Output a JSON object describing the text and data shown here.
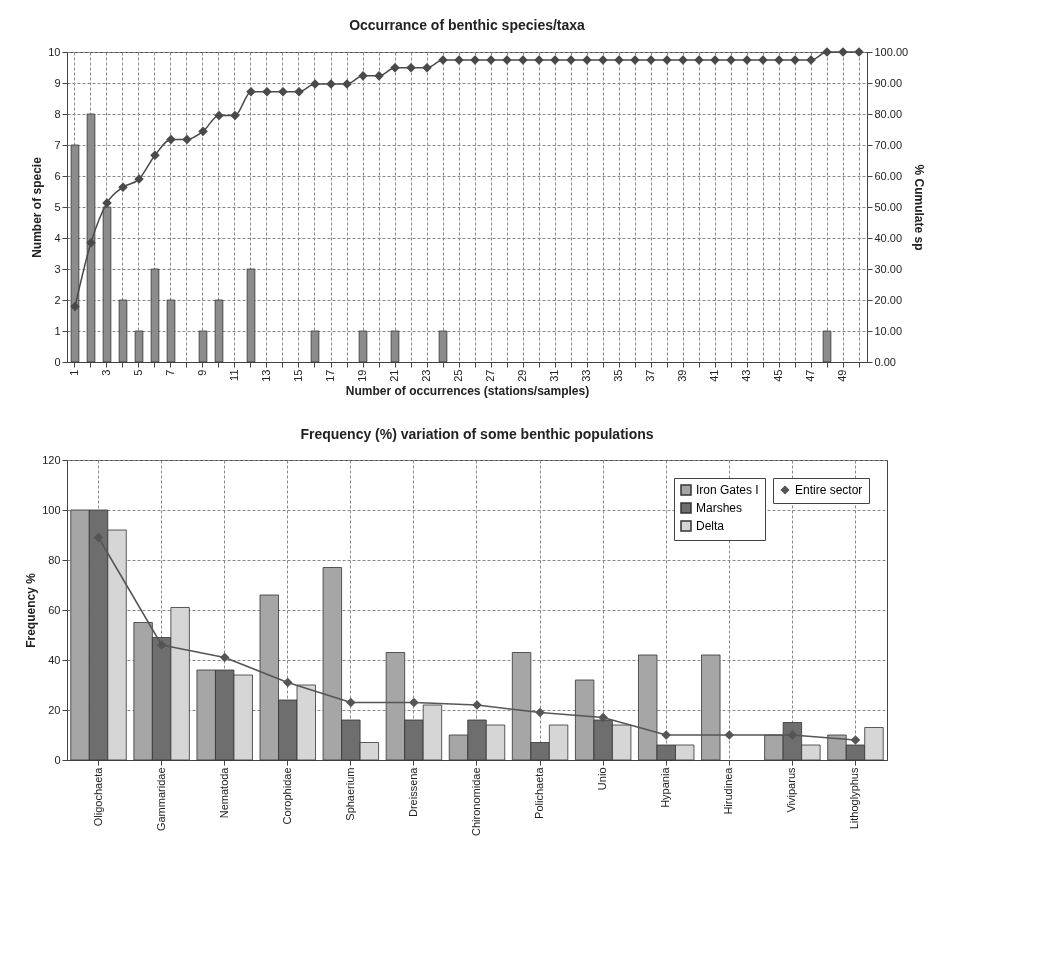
{
  "chart_data": [
    {
      "type": "bar",
      "title": "Occurrance of benthic species/taxa",
      "xlabel": "Number of occurrences (stations/samples)",
      "ylabel": "Number of specie",
      "y2label": "% Cumulate sp",
      "categories": [
        "1",
        null,
        "3",
        null,
        "5",
        null,
        "7",
        null,
        "9",
        null,
        "11",
        null,
        "13",
        null,
        "15",
        null,
        "17",
        null,
        "19",
        null,
        "21",
        null,
        "23",
        null,
        "25",
        null,
        "27",
        null,
        "29",
        null,
        "31",
        null,
        "33",
        null,
        "35",
        null,
        "37",
        null,
        "39",
        null,
        "41",
        null,
        "43",
        null,
        "45",
        null,
        "47",
        null,
        "49",
        null
      ],
      "series": [
        {
          "color": "#8c8c8c",
          "values": [
            7,
            8,
            5,
            2,
            1,
            3,
            2,
            0,
            1,
            2,
            0,
            3,
            0,
            0,
            0,
            1,
            0,
            0,
            1,
            0,
            1,
            0,
            0,
            1,
            0,
            0,
            0,
            0,
            0,
            0,
            0,
            0,
            0,
            0,
            0,
            0,
            0,
            0,
            0,
            0,
            0,
            0,
            0,
            0,
            0,
            0,
            0,
            1,
            0,
            0
          ]
        },
        {
          "type": "line",
          "axis": "y2",
          "color": "#4a4a4a",
          "values": [
            17.9,
            38.5,
            51.3,
            56.4,
            59.0,
            66.7,
            71.8,
            71.8,
            74.4,
            79.5,
            79.5,
            87.2,
            87.2,
            87.2,
            87.2,
            89.7,
            89.7,
            89.7,
            92.3,
            92.3,
            94.9,
            94.9,
            94.9,
            97.4,
            97.4,
            97.4,
            97.4,
            97.4,
            97.4,
            97.4,
            97.4,
            97.4,
            97.4,
            97.4,
            97.4,
            97.4,
            97.4,
            97.4,
            97.4,
            97.4,
            97.4,
            97.4,
            97.4,
            97.4,
            97.4,
            97.4,
            97.4,
            100,
            100,
            100
          ]
        }
      ],
      "ylim": [
        0,
        10
      ],
      "yticks": [
        0,
        1,
        2,
        3,
        4,
        5,
        6,
        7,
        8,
        9,
        10
      ],
      "y2lim": [
        0,
        100
      ],
      "y2ticks": [
        {
          "value": 0,
          "label": "0.00"
        },
        {
          "value": 10,
          "label": "10.00"
        },
        {
          "value": 20,
          "label": "20.00"
        },
        {
          "value": 30,
          "label": "30.00"
        },
        {
          "value": 40,
          "label": "40.00"
        },
        {
          "value": 50,
          "label": "50.00"
        },
        {
          "value": 60,
          "label": "60.00"
        },
        {
          "value": 70,
          "label": "70.00"
        },
        {
          "value": 80,
          "label": "80.00"
        },
        {
          "value": 90,
          "label": "90.00"
        },
        {
          "value": 100,
          "label": "100.00"
        }
      ],
      "grid": true,
      "marker": "diamond"
    },
    {
      "type": "bar",
      "title": "Frequency (%) variation of some benthic populations",
      "ylabel": "Frequency %",
      "categories": [
        "Oligochaeta",
        "Gammaridae",
        "Nematoda",
        "Corophidae",
        "Sphaerium",
        "Dreissena",
        "Chironomidae",
        "Polichaeta",
        "Unio",
        "Hypania",
        "Hirudinea",
        "Viviparus",
        "Lithoglyphus"
      ],
      "series": [
        {
          "name": "Iron Gates I",
          "color": "#a6a6a6",
          "values": [
            100,
            55,
            36,
            66,
            77,
            43,
            10,
            43,
            32,
            42,
            42,
            10,
            10
          ]
        },
        {
          "name": "Marshes",
          "color": "#6e6e6e",
          "values": [
            100,
            49,
            36,
            24,
            16,
            16,
            16,
            7,
            16,
            6,
            null,
            15,
            6
          ]
        },
        {
          "name": "Delta",
          "color": "#d6d6d6",
          "values": [
            92,
            61,
            34,
            30,
            7,
            22,
            14,
            14,
            14,
            6,
            null,
            6,
            13
          ]
        },
        {
          "name": "Entire sector",
          "type": "line",
          "color": "#555555",
          "values": [
            89,
            46,
            41,
            31,
            23,
            23,
            22,
            19,
            17,
            10,
            10,
            10,
            8
          ]
        }
      ],
      "ylim": [
        0,
        120
      ],
      "yticks": [
        0,
        20,
        40,
        60,
        80,
        100,
        120
      ],
      "grid": true,
      "legend": "top right",
      "marker": "diamond"
    }
  ]
}
